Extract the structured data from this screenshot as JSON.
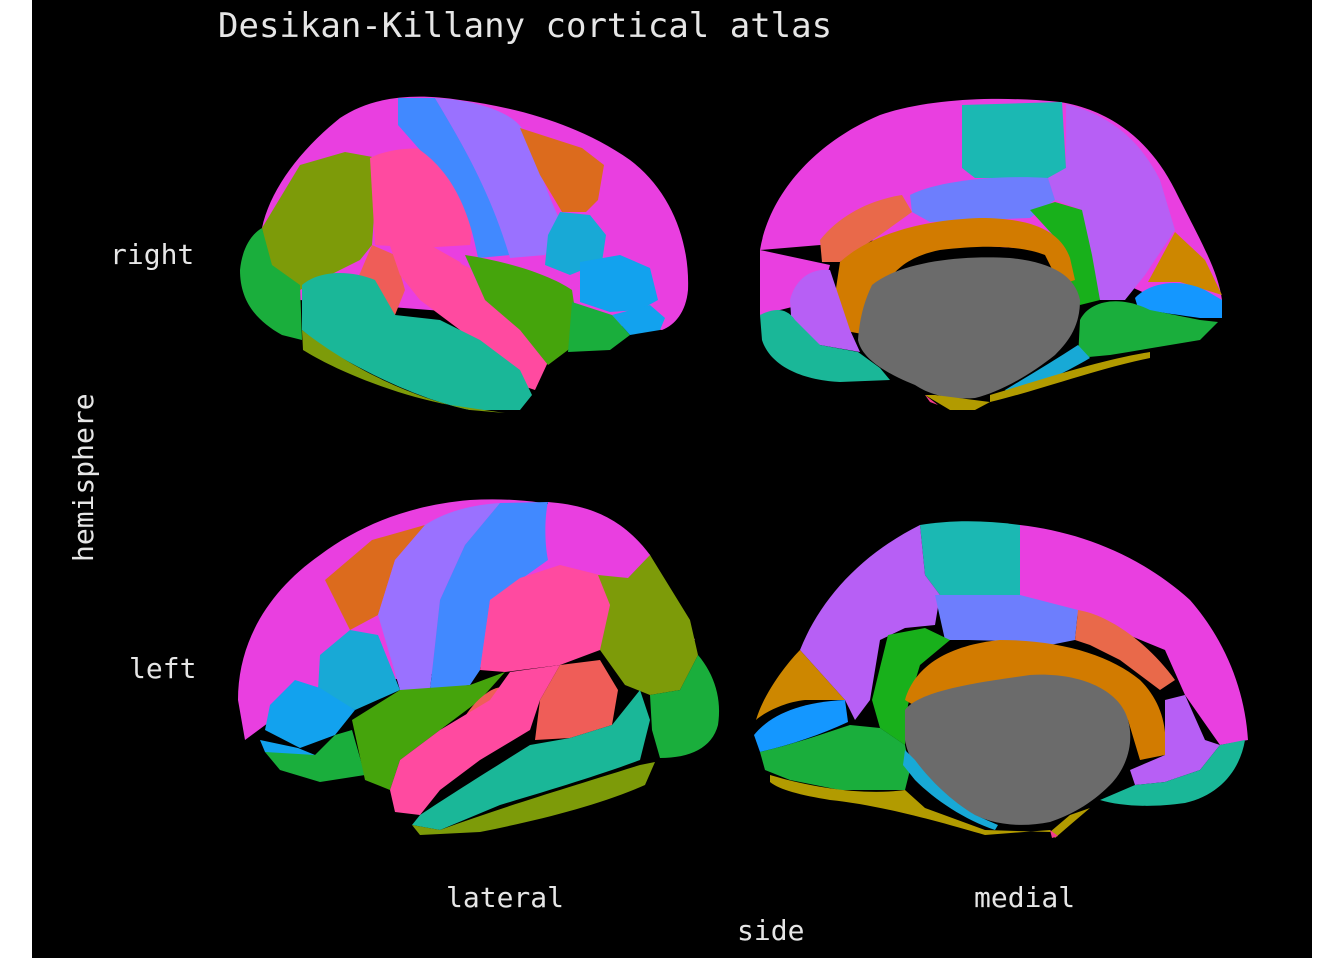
{
  "title": "Desikan-Killany cortical atlas",
  "axes": {
    "x_title": "side",
    "y_title": "hemisphere",
    "columns": [
      "lateral",
      "medial"
    ],
    "rows": [
      "right",
      "left"
    ]
  },
  "colors": {
    "background": "#000000",
    "text": "#e6e6e6",
    "magenta": "#e93fe0",
    "blue": "#4189ff",
    "lavender": "#9a71ff",
    "orange": "#dc6b1d",
    "olive": "#7d9b09",
    "pink": "#ff4aa0",
    "green": "#1aae3c",
    "teal": "#1ab798",
    "salmon": "#ef5d58",
    "cyan": "#18a9d6",
    "lightblue": "#12a2ee",
    "grassgreen": "#45a40c",
    "gold": "#b29b00",
    "gray": "#6b6b6b",
    "darkorange": "#d27b00",
    "violet": "#b75ff5",
    "turquoise": "#1bb8b3",
    "periwinkle": "#6d7efd",
    "coral": "#e9694a",
    "brightgreen": "#18b01b",
    "amber": "#cd8700",
    "skyblue": "#1497ff",
    "pinkred": "#f43c8c"
  }
}
